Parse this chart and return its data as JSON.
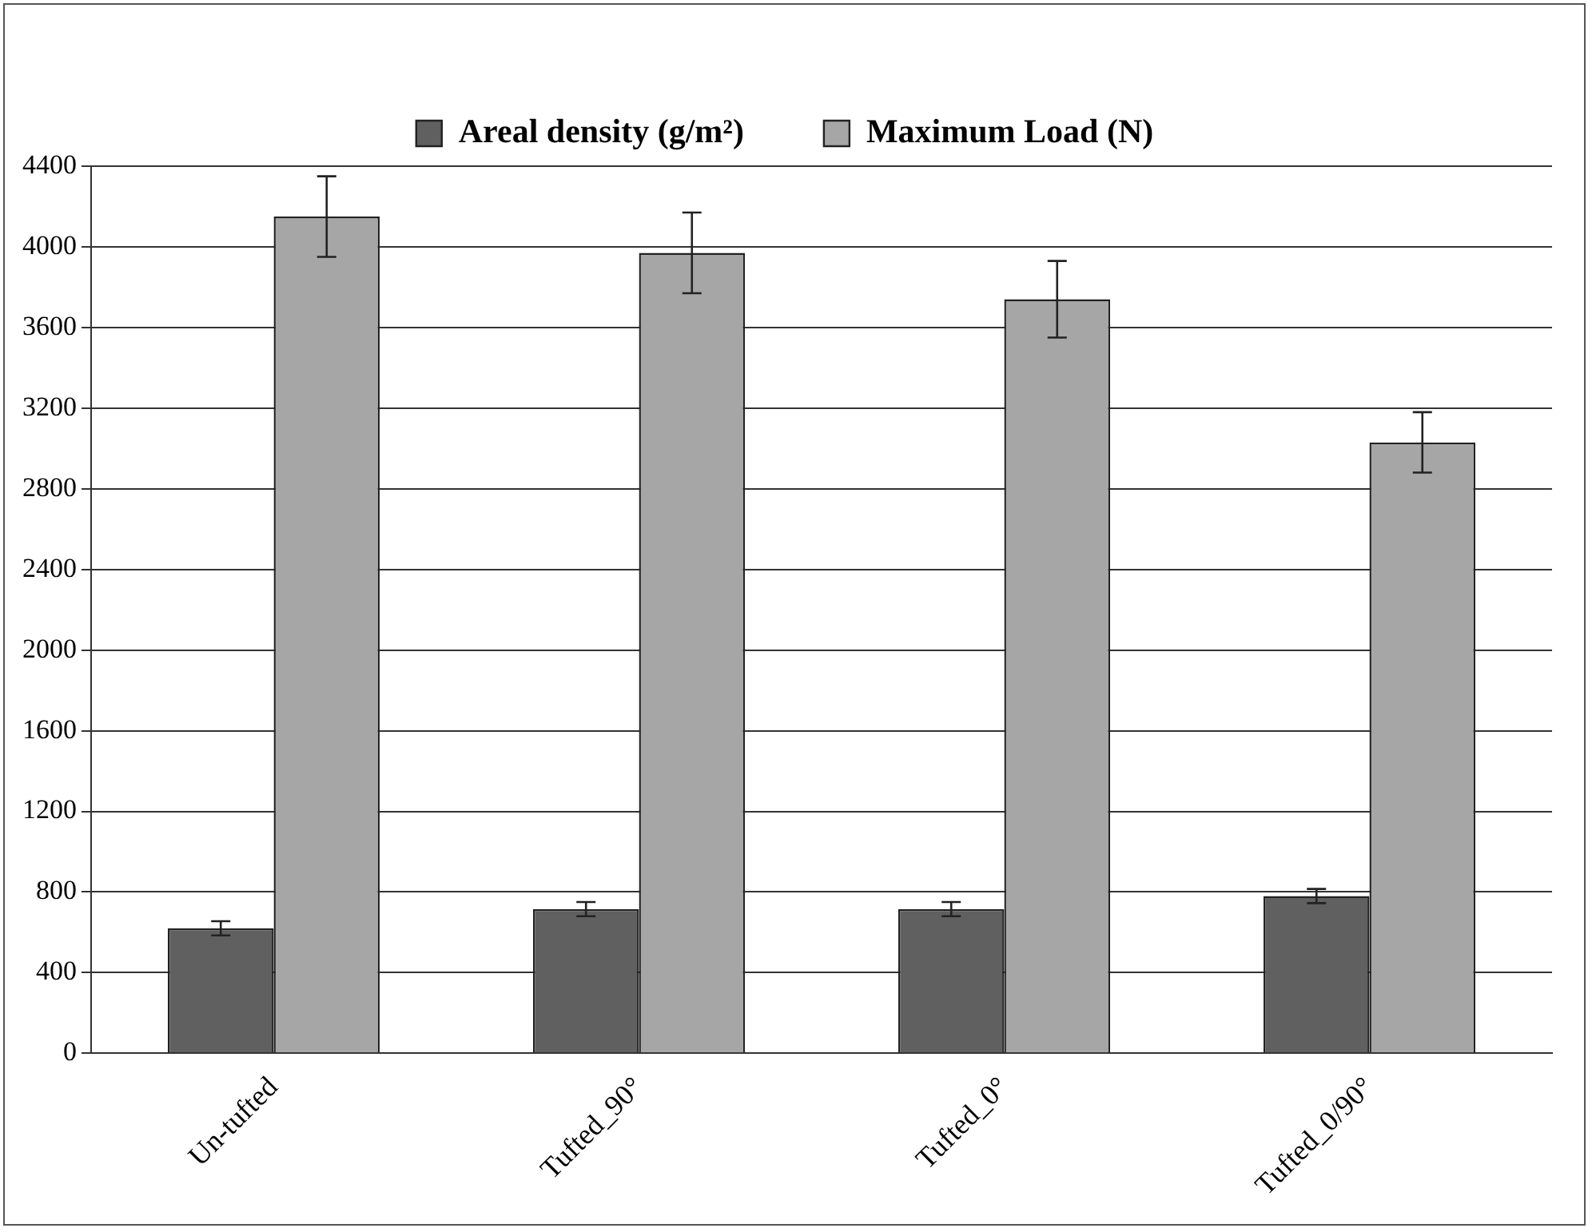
{
  "chart_data": {
    "type": "bar",
    "categories": [
      "Un-tufted",
      "Tufted_90°",
      "Tufted_0°",
      "Tufted_0/90°"
    ],
    "series": [
      {
        "name": "Areal density (g/m²)",
        "color": "#606060",
        "values": [
          620,
          715,
          715,
          780
        ],
        "errors": [
          35,
          35,
          35,
          35
        ]
      },
      {
        "name": "Maximum Load (N)",
        "color": "#a6a6a6",
        "values": [
          4150,
          3970,
          3740,
          3030
        ],
        "errors": [
          200,
          200,
          190,
          150
        ]
      }
    ],
    "ylim": [
      0,
      4400
    ],
    "yticks": [
      0,
      400,
      800,
      1200,
      1600,
      2000,
      2400,
      2800,
      3200,
      3600,
      4000,
      4400
    ],
    "grid": "y",
    "legend": "top"
  }
}
